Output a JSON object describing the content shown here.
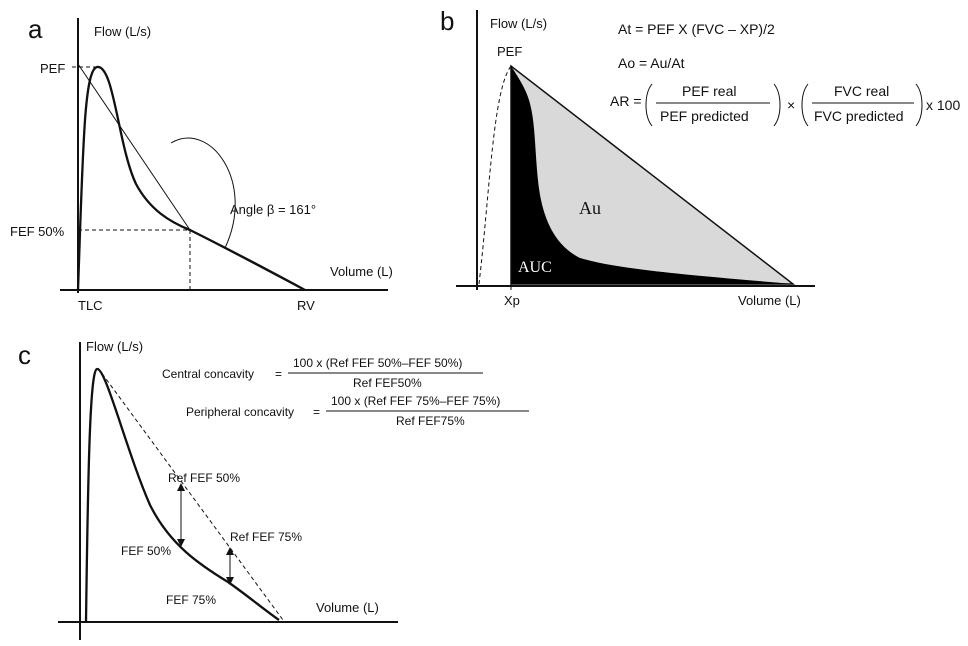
{
  "panel_a": {
    "letter": "a",
    "flow_axis": "Flow (L/s)",
    "volume_axis": "Volume (L)",
    "pef": "PEF",
    "fef50": "FEF 50%",
    "tlc": "TLC",
    "rv": "RV",
    "angle": "Angle β = 161°"
  },
  "panel_b": {
    "letter": "b",
    "flow_axis": "Flow (L/s)",
    "volume_axis": "Volume (L)",
    "pef": "PEF",
    "xp": "Xp",
    "au": "Au",
    "auc": "AUC",
    "formula_at": "At = PEF X (FVC – XP)/2",
    "formula_ao": "Ao = Au/At",
    "ar_prefix": "AR =",
    "pef_real": "PEF real",
    "pef_predicted": "PEF predicted",
    "times": "×",
    "fvc_real": "FVC real",
    "fvc_predicted": "FVC predicted",
    "ar_suffix": "x 100",
    "colors": {
      "auc": "#000000",
      "au": "#d9d9d9"
    }
  },
  "panel_c": {
    "letter": "c",
    "flow_axis": "Flow (L/s)",
    "volume_axis": "Volume (L)",
    "central_label": "Central concavity",
    "central_eq": "=",
    "central_num": "100 x (Ref FEF 50%–FEF 50%)",
    "central_den": "Ref FEF50%",
    "peripheral_label": "Peripheral concavity",
    "peripheral_eq": "=",
    "peripheral_num": "100 x (Ref FEF 75%–FEF 75%)",
    "peripheral_den": "Ref FEF75%",
    "ref_fef50": "Ref FEF 50%",
    "ref_fef75": "Ref FEF 75%",
    "fef50": "FEF 50%",
    "fef75": "FEF 75%"
  }
}
